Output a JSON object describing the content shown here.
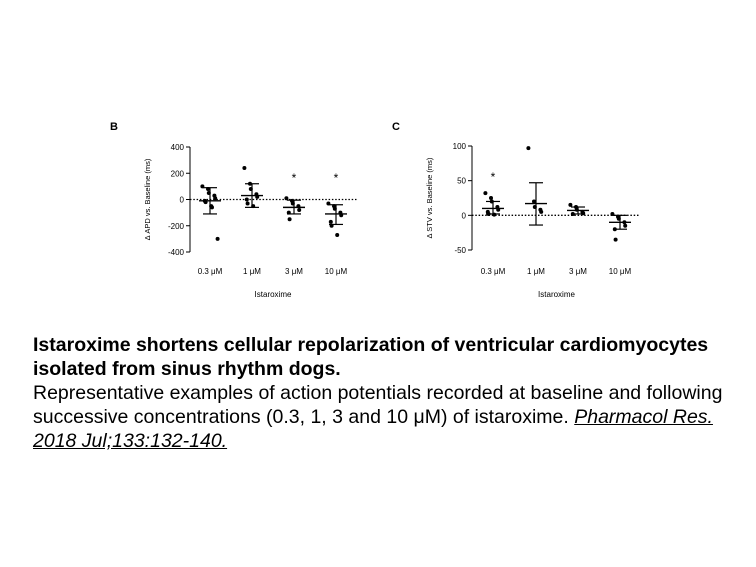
{
  "panels": {
    "b_letter": "B",
    "c_letter": "C"
  },
  "chart_data": [
    {
      "type": "scatter",
      "panel": "B",
      "ylabel": "Δ APD vs. Baseline (ms)",
      "xlabel": "Istaroxime",
      "categories": [
        "0.3 μM",
        "1 μM",
        "3 μM",
        "10 μM"
      ],
      "ylim": [
        -400,
        400
      ],
      "yticks": [
        400,
        200,
        0,
        -200,
        -400
      ],
      "baseline": 0,
      "groups": [
        {
          "points": [
            100,
            80,
            50,
            30,
            10,
            -10,
            -20,
            -50,
            -60,
            -300
          ],
          "mean": -10,
          "error_low": -110,
          "error_high": 90,
          "significant": false
        },
        {
          "points": [
            240,
            120,
            80,
            40,
            20,
            0,
            -30,
            -50
          ],
          "mean": 30,
          "error_low": -60,
          "error_high": 120,
          "significant": false
        },
        {
          "points": [
            10,
            -10,
            -30,
            -50,
            -80,
            -100,
            -150
          ],
          "mean": -60,
          "error_low": -110,
          "error_high": -5,
          "significant": true
        },
        {
          "points": [
            -30,
            -50,
            -70,
            -100,
            -120,
            -170,
            -200,
            -270
          ],
          "mean": -110,
          "error_low": -190,
          "error_high": -40,
          "significant": true
        }
      ],
      "significance_marker": "*"
    },
    {
      "type": "scatter",
      "panel": "C",
      "ylabel": "Δ STV vs. Baseline (ms)",
      "xlabel": "Istaroxime",
      "categories": [
        "0.3 μM",
        "1 μM",
        "3 μM",
        "10 μM"
      ],
      "ylim": [
        -50,
        100
      ],
      "yticks": [
        100,
        50,
        0,
        -50
      ],
      "baseline": 0,
      "groups": [
        {
          "points": [
            32,
            25,
            20,
            12,
            8,
            5,
            2,
            1
          ],
          "mean": 10,
          "error_low": 2,
          "error_high": 20,
          "significant": true
        },
        {
          "points": [
            97,
            20,
            12,
            8,
            5
          ],
          "mean": 17,
          "error_low": -14,
          "error_high": 47,
          "significant": false
        },
        {
          "points": [
            15,
            12,
            8,
            5,
            3,
            2
          ],
          "mean": 7,
          "error_low": 2,
          "error_high": 12,
          "significant": false
        },
        {
          "points": [
            2,
            -2,
            -5,
            -10,
            -15,
            -20,
            -35
          ],
          "mean": -10,
          "error_low": -20,
          "error_high": 0,
          "significant": false
        }
      ],
      "significance_marker": "*"
    }
  ],
  "caption": {
    "title": "Istaroxime shortens cellular repolarization of ventricular cardiomyocytes isolated from sinus rhythm dogs.",
    "body": "Representative examples of action potentials recorded at baseline and following successive concentrations (0.3, 1, 3 and 10 μM) of istaroxime. ",
    "citation": "Pharmacol Res. 2018 Jul;133:132-140."
  }
}
